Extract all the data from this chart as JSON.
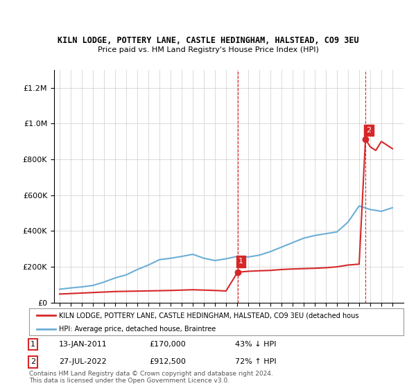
{
  "title1": "KILN LODGE, POTTERY LANE, CASTLE HEDINGHAM, HALSTEAD, CO9 3EU",
  "title2": "Price paid vs. HM Land Registry's House Price Index (HPI)",
  "legend_line1": "KILN LODGE, POTTERY LANE, CASTLE HEDINGHAM, HALSTEAD, CO9 3EU (detached hous",
  "legend_line2": "HPI: Average price, detached house, Braintree",
  "annotation1_num": "1",
  "annotation1_date": "13-JAN-2011",
  "annotation1_price": "£170,000",
  "annotation1_hpi": "43% ↓ HPI",
  "annotation2_num": "2",
  "annotation2_date": "27-JUL-2022",
  "annotation2_price": "£912,500",
  "annotation2_hpi": "72% ↑ HPI",
  "footer": "Contains HM Land Registry data © Crown copyright and database right 2024.\nThis data is licensed under the Open Government Licence v3.0.",
  "sale1_year": 2011.04,
  "sale1_price": 170000,
  "sale2_year": 2022.57,
  "sale2_price": 912500,
  "hpi_color": "#6baed6",
  "price_color": "#d62728",
  "vline_color": "#d62728",
  "background_color": "#ffffff",
  "grid_color": "#cccccc",
  "ylim": [
    0,
    1300000
  ],
  "xlim_min": 1994.5,
  "xlim_max": 2026.0,
  "hpi_years": [
    1995,
    1996,
    1997,
    1998,
    1999,
    2000,
    2001,
    2002,
    2003,
    2004,
    2005,
    2006,
    2007,
    2008,
    2009,
    2010,
    2011,
    2012,
    2013,
    2014,
    2015,
    2016,
    2017,
    2018,
    2019,
    2020,
    2021,
    2022,
    2023,
    2024,
    2025
  ],
  "hpi_values": [
    75000,
    82000,
    88000,
    96000,
    115000,
    138000,
    155000,
    185000,
    210000,
    240000,
    248000,
    258000,
    270000,
    248000,
    235000,
    245000,
    258000,
    255000,
    265000,
    285000,
    310000,
    335000,
    360000,
    375000,
    385000,
    395000,
    450000,
    540000,
    520000,
    510000,
    530000
  ],
  "sale_years": [
    2011.04,
    2022.57
  ],
  "sale_prices": [
    170000,
    912500
  ]
}
